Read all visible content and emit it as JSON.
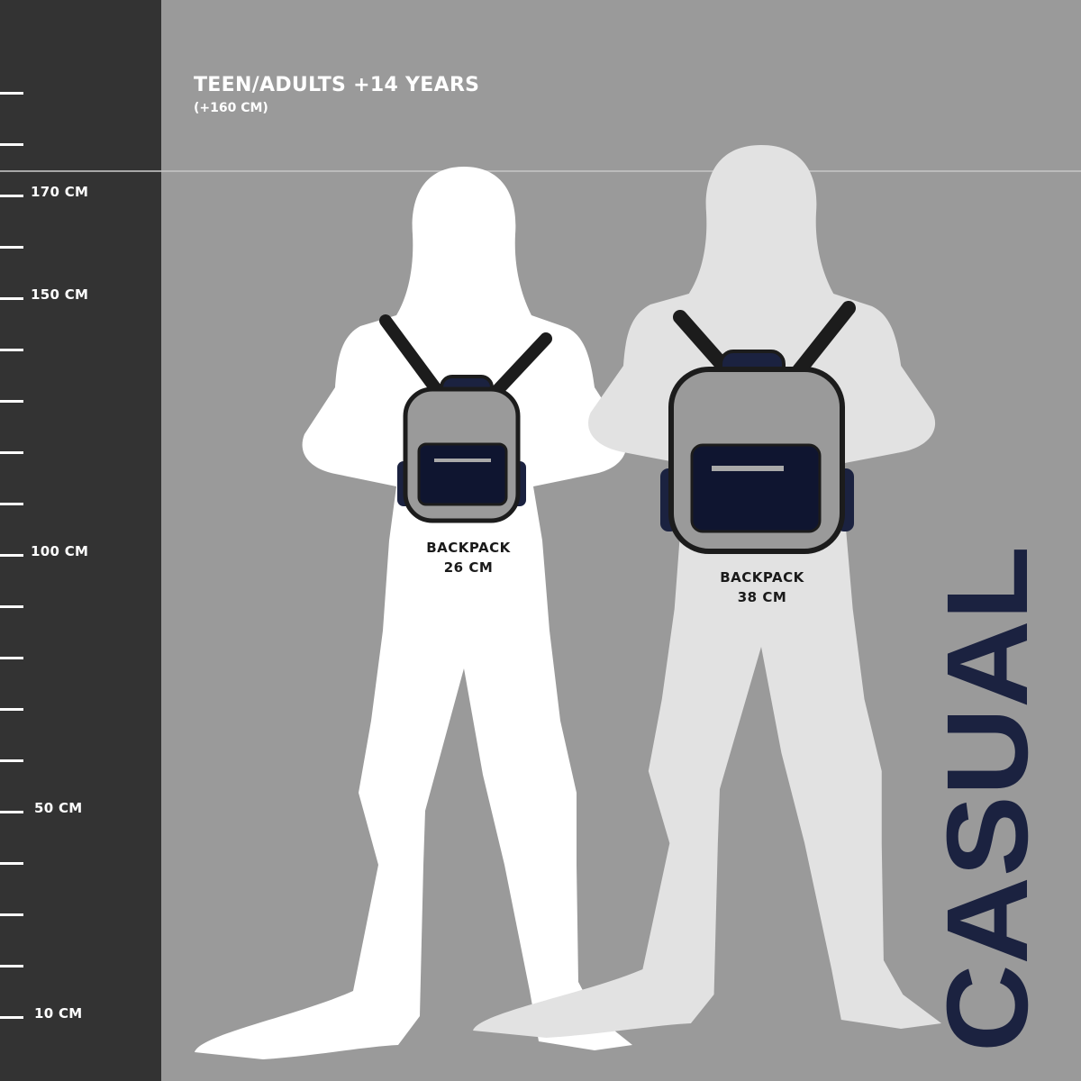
{
  "header": {
    "title": "TEEN/ADULTS +14 YEARS",
    "subtitle": "(+160 CM)"
  },
  "ruler": {
    "labels": {
      "170": "170 CM",
      "150": "150 CM",
      "100": "100 CM",
      "50": "50 CM",
      "10": "10 CM"
    }
  },
  "backpacks": [
    {
      "name": "BACKPACK",
      "size": "26 CM"
    },
    {
      "name": "BACKPACK",
      "size": "38 CM"
    }
  ],
  "brand_word": "CASUAL",
  "colors": {
    "ruler_bg": "#333333",
    "background": "#9a9a9a",
    "silhouette_front": "#ffffff",
    "silhouette_back": "#e2e2e2",
    "navy": "#1b2240",
    "backpack_body": "#9a9a9a"
  }
}
